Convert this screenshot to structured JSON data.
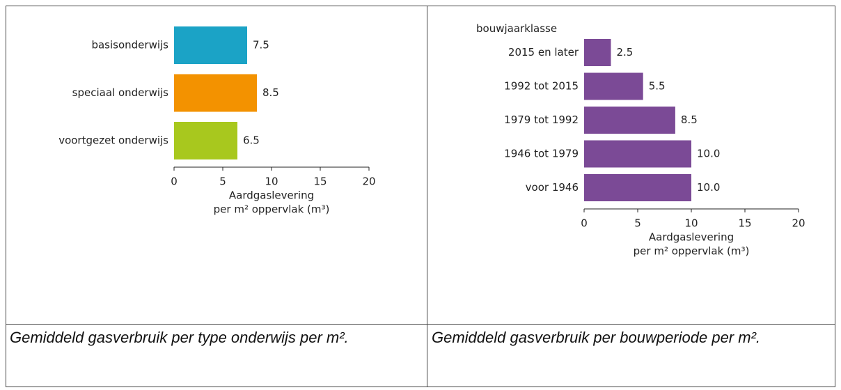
{
  "chart_data": [
    {
      "type": "barh",
      "categories": [
        "basisonderwijs",
        "speciaal onderwijs",
        "voortgezet onderwijs"
      ],
      "values": [
        7.5,
        8.5,
        6.5
      ],
      "colors": [
        "#1ba3c6",
        "#f39200",
        "#a8c81e"
      ],
      "xlim": [
        0,
        20
      ],
      "xticks": [
        0,
        5,
        10,
        15,
        20
      ],
      "xlabel": [
        "Aardgaslevering",
        "per m² oppervlak (m³)"
      ],
      "caption": "Gemiddeld gasverbruik per type onderwijs per m²."
    },
    {
      "type": "barh",
      "ylabel": "bouwjaarklasse",
      "categories": [
        "2015 en later",
        "1992 tot 2015",
        "1979 tot 1992",
        "1946 tot 1979",
        "voor 1946"
      ],
      "values": [
        2.5,
        5.5,
        8.5,
        10,
        10
      ],
      "value_labels": [
        "2.5",
        "5.5",
        "8.5",
        "10.0",
        "10.0"
      ],
      "color": "#7b4a96",
      "xlim": [
        0,
        20
      ],
      "xticks": [
        0,
        5,
        10,
        15,
        20
      ],
      "xlabel": [
        "Aardgaslevering",
        "per m² oppervlak (m³)"
      ],
      "caption": "Gemiddeld gasverbruik per bouwperiode per m²."
    }
  ]
}
